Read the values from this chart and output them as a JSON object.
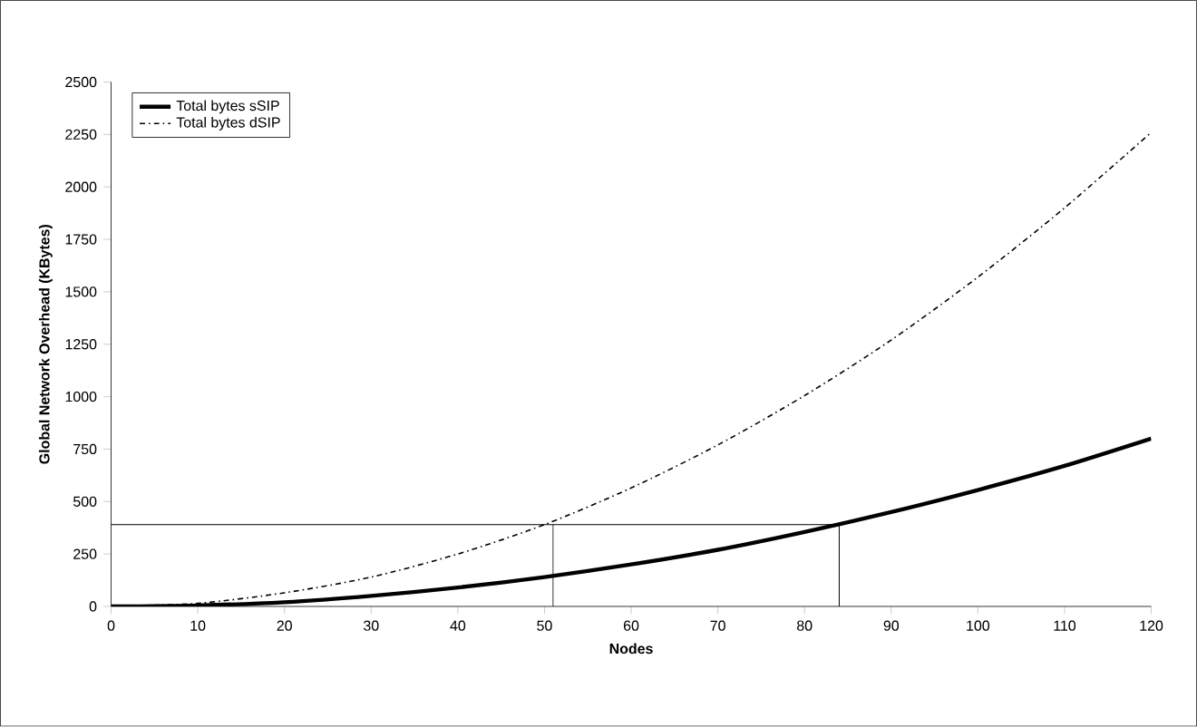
{
  "chart_data": {
    "type": "line",
    "xlabel": "Nodes",
    "ylabel": "Global Network Overhead (KBytes)",
    "xlim": [
      0,
      120
    ],
    "ylim": [
      0,
      2500
    ],
    "xticks": [
      0,
      10,
      20,
      30,
      40,
      50,
      60,
      70,
      80,
      90,
      100,
      110,
      120
    ],
    "yticks": [
      0,
      250,
      500,
      750,
      1000,
      1250,
      1500,
      1750,
      2000,
      2250,
      2500
    ],
    "x": [
      0,
      10,
      20,
      30,
      40,
      50,
      60,
      70,
      80,
      90,
      100,
      110,
      120
    ],
    "series": [
      {
        "name": "Total bytes sSIP",
        "color": "#000000",
        "line_style": "solid",
        "values": [
          0,
          5,
          20,
          50,
          90,
          140,
          200,
          270,
          355,
          450,
          555,
          670,
          800
        ]
      },
      {
        "name": "Total bytes dSIP",
        "color": "#000000",
        "line_style": "dashdot",
        "values": [
          0,
          15,
          65,
          140,
          250,
          390,
          565,
          770,
          1005,
          1270,
          1570,
          1900,
          2260
        ]
      },
      {
        "color": "#000000",
        "line_style": "solid",
        "x": [
          0,
          84,
          84
        ],
        "values": [
          390,
          390,
          0
        ]
      },
      {
        "color": "#000000",
        "line_style": "solid",
        "x": [
          51,
          51
        ],
        "values": [
          0,
          390
        ]
      }
    ],
    "legend": "top left",
    "grid": false,
    "marker": "none"
  }
}
